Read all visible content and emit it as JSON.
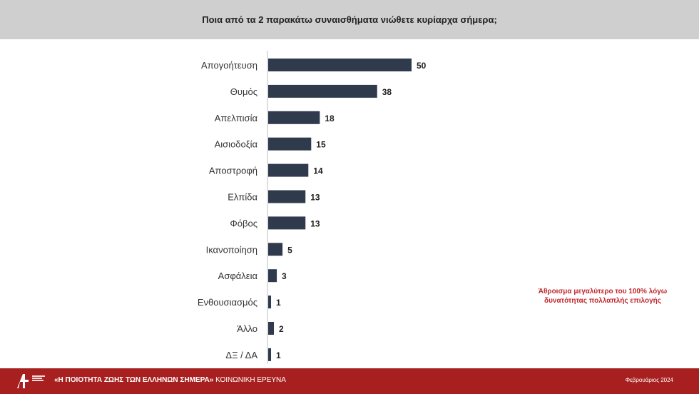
{
  "header": {
    "question": "Ποια από τα 2 παρακάτω συναισθήματα νιώθετε κυρίαρχα σήμερα;"
  },
  "colors": {
    "bar": "#2f3a4d",
    "header_bg": "#cfcfcf",
    "footer_bg": "#a7201f",
    "note": "#c0272d"
  },
  "chart_data": {
    "type": "bar",
    "orientation": "horizontal",
    "categories": [
      "Απογοήτευση",
      "Θυμός",
      "Απελπισία",
      "Αισιοδοξία",
      "Αποστροφή",
      "Ελπίδα",
      "Φόβος",
      "Ικανοποίηση",
      "Ασφάλεια",
      "Ενθουσιασμός",
      "Άλλο",
      "ΔΞ / ΔΑ"
    ],
    "values": [
      50,
      38,
      18,
      15,
      14,
      13,
      13,
      5,
      3,
      1,
      2,
      1
    ],
    "xlim": [
      0,
      50
    ],
    "grid": false,
    "data_labels": true
  },
  "note": {
    "line1": "Άθροισμα μεγαλύτερο του 100% λόγω",
    "line2": "δυνατότητας πολλαπλής επιλογής"
  },
  "footer": {
    "title_bold": "«Η ΠΟΙΟΤΗΤΑ ΖΩΗΣ ΤΩΝ ΕΛΛΗΝΩΝ ΣΗΜΕΡΑ»",
    "title_rest": " ΚΟΙΝΩΝΙΚΗ ΕΡΕΥΝΑ",
    "date": "Φεβρουάριος 2024"
  }
}
